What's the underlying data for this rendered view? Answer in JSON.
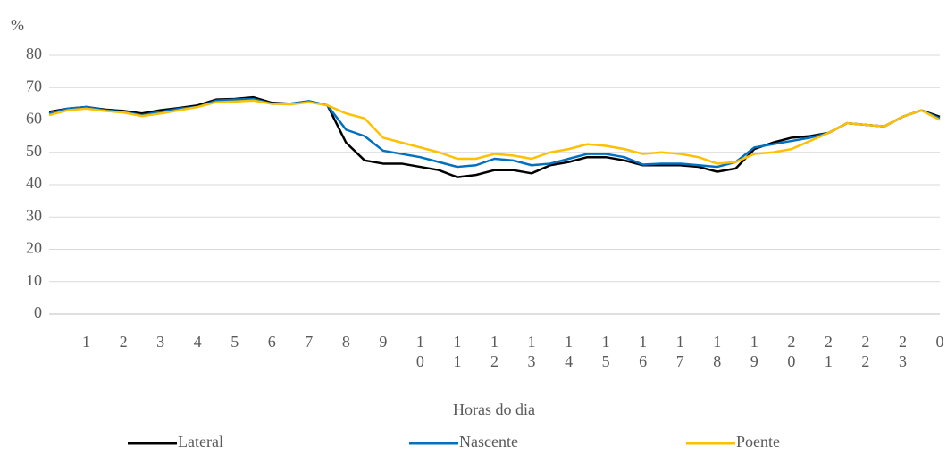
{
  "chart_data": {
    "type": "line",
    "y_label": "%",
    "x_label": "Horas do dia",
    "x": [
      0,
      0.5,
      1,
      1.5,
      2,
      2.5,
      3,
      3.5,
      4,
      4.5,
      5,
      5.5,
      6,
      6.5,
      7,
      7.5,
      8,
      8.5,
      9,
      9.5,
      10,
      10.5,
      11,
      11.5,
      12,
      12.5,
      13,
      13.5,
      14,
      14.5,
      15,
      15.5,
      16,
      16.5,
      17,
      17.5,
      18,
      18.5,
      19,
      19.5,
      20,
      20.5,
      21,
      21.5,
      22,
      22.5,
      23,
      23.5,
      24
    ],
    "series": [
      {
        "name": "Lateral",
        "color": "#000000",
        "values": [
          62.5,
          63.5,
          64,
          63.2,
          62.8,
          62,
          63,
          63.7,
          64.5,
          66.3,
          66.5,
          67,
          65.3,
          65,
          65.8,
          64.5,
          53,
          47.5,
          46.5,
          46.5,
          45.5,
          44.5,
          42.3,
          43,
          44.5,
          44.5,
          43.5,
          46,
          47,
          48.5,
          48.5,
          47.5,
          46,
          46,
          46,
          45.5,
          44,
          45,
          51,
          53,
          54.5,
          55,
          56,
          59,
          58.5,
          58,
          61,
          63,
          61
        ]
      },
      {
        "name": "Nascente",
        "color": "#0070c0",
        "values": [
          62,
          63.5,
          64,
          63,
          62.5,
          61.5,
          62.5,
          63.5,
          64,
          66,
          66.3,
          66.5,
          65,
          65,
          65.8,
          64.5,
          57,
          55,
          50.5,
          49.5,
          48.5,
          47,
          45.5,
          46,
          48,
          47.5,
          46,
          46.5,
          48,
          49.5,
          49.5,
          48.5,
          46.2,
          46.5,
          46.5,
          46,
          45.5,
          47,
          51.5,
          52.5,
          53.5,
          54.5,
          56,
          59,
          58.5,
          58,
          61,
          63,
          60.5
        ]
      },
      {
        "name": "Poente",
        "color": "#ffc000",
        "values": [
          61.5,
          63,
          63.5,
          62.8,
          62.3,
          61.2,
          62,
          63,
          64,
          65.5,
          65.7,
          66,
          65,
          64.8,
          65.5,
          64.5,
          62,
          60.5,
          54.5,
          53,
          51.5,
          50,
          48,
          48,
          49.5,
          49,
          48,
          50,
          51,
          52.5,
          52,
          51,
          49.5,
          50,
          49.5,
          48.5,
          46.5,
          47,
          49.5,
          50,
          51,
          53.5,
          56,
          59,
          58.5,
          58,
          61,
          63,
          60
        ]
      }
    ],
    "xlim": [
      0,
      24
    ],
    "xticks": [
      1,
      2,
      3,
      4,
      5,
      6,
      7,
      8,
      9,
      10,
      11,
      12,
      13,
      14,
      15,
      16,
      17,
      18,
      19,
      20,
      21,
      22,
      23,
      {
        "value": 24,
        "label": "0"
      }
    ],
    "ylim": [
      0,
      80
    ],
    "yticks": [
      0,
      10,
      20,
      30,
      40,
      50,
      60,
      70,
      80
    ],
    "grid": true,
    "legend": "bottom"
  }
}
